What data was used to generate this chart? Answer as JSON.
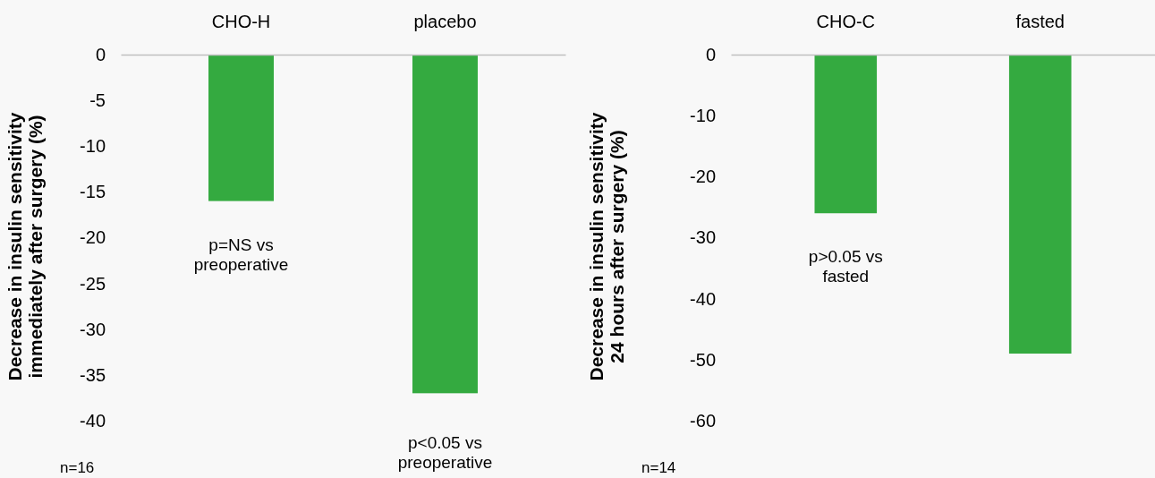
{
  "chart_data": [
    {
      "type": "bar",
      "ylabel": "Decrease in insulin sensitivity\nimmediately after surgery (%)",
      "categories": [
        "CHO-H",
        "placebo"
      ],
      "values": [
        -16,
        -37
      ],
      "color": "#34aa40",
      "ylim": [
        -40,
        0
      ],
      "yticks": [
        -40,
        -35,
        -30,
        -25,
        -20,
        -15,
        -10,
        -5,
        0
      ],
      "annotations": [
        "p=NS vs\npreoperative",
        "p<0.05 vs\npreoperative",
        "n=16"
      ]
    },
    {
      "type": "bar",
      "ylabel": "Decrease in insulin sensitivity\n24 hours after surgery (%)",
      "categories": [
        "CHO-C",
        "fasted"
      ],
      "values": [
        -26,
        -49
      ],
      "color": "#34aa40",
      "ylim": [
        -60,
        0
      ],
      "yticks": [
        -60,
        -50,
        -40,
        -30,
        -20,
        -10,
        0
      ],
      "annotations": [
        "p>0.05 vs\nfasted",
        "n=14"
      ]
    }
  ]
}
